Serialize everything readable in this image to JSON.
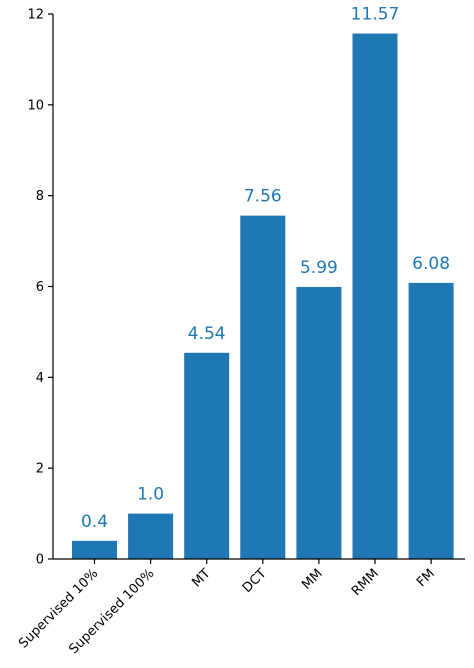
{
  "chart_data": {
    "type": "bar",
    "categories": [
      "Supervised 10%",
      "Supervised 100%",
      "MT",
      "DCT",
      "MM",
      "RMM",
      "FM"
    ],
    "values": [
      0.4,
      1.0,
      4.54,
      7.56,
      5.99,
      11.57,
      6.08
    ],
    "value_labels": [
      "0.4",
      "1.0",
      "4.54",
      "7.56",
      "5.99",
      "11.57",
      "6.08"
    ],
    "title": "",
    "xlabel": "",
    "ylabel": "",
    "ylim": [
      0,
      12
    ],
    "yticks": [
      "0",
      "2",
      "4",
      "6",
      "8",
      "10",
      "12"
    ],
    "grid": false,
    "legend": "none",
    "bar_color": "#1f77b4",
    "label_color": "#1f77b4"
  }
}
